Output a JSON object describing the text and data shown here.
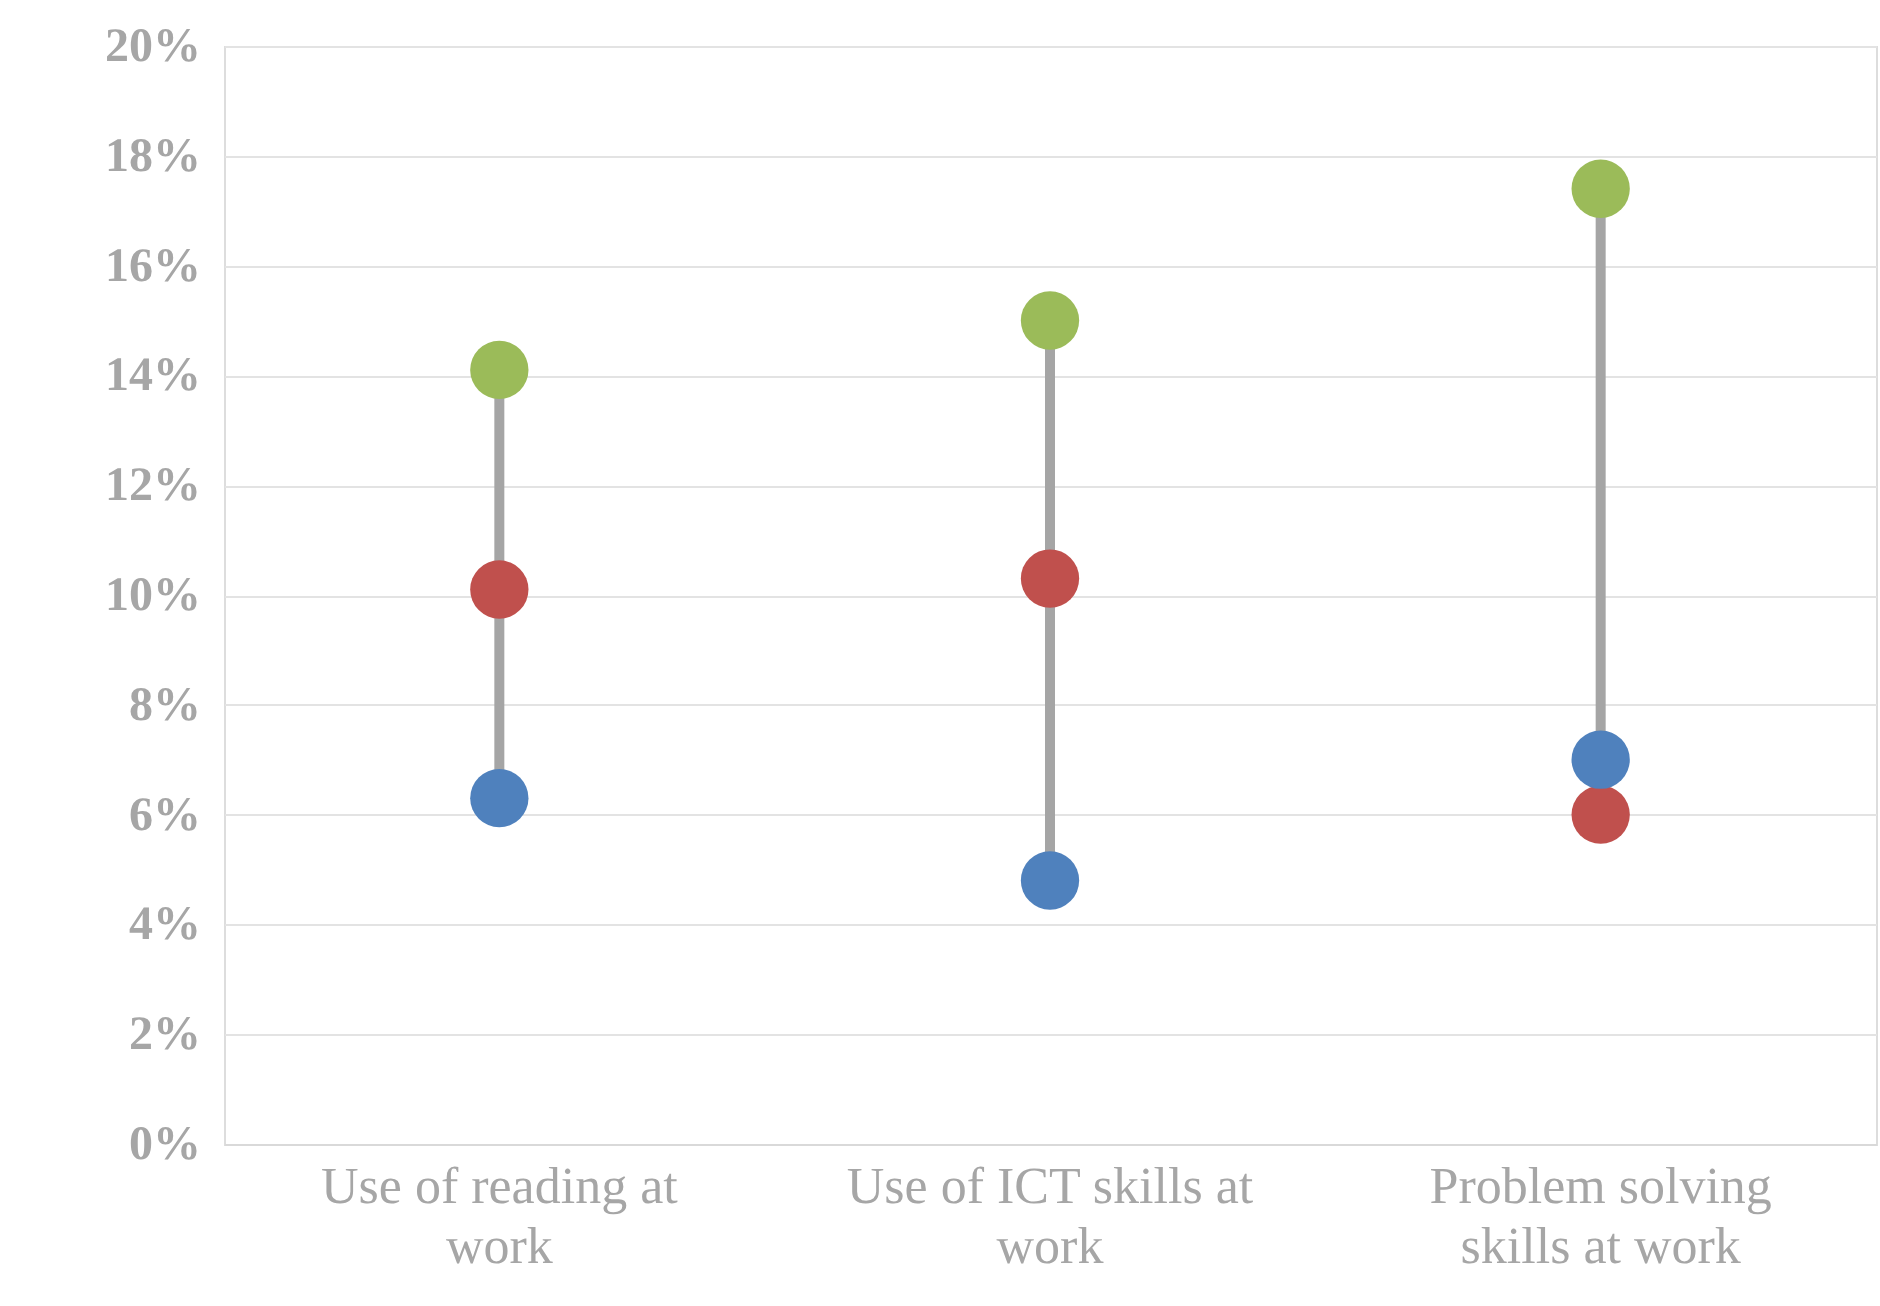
{
  "chart_data": {
    "type": "scatter",
    "marker": "circle",
    "grid": "y",
    "categories": [
      "Use of reading at work",
      "Use of ICT skills at work",
      "Problem solving skills at work"
    ],
    "ylim": [
      0,
      20
    ],
    "yticks": [
      {
        "value": 0,
        "label": "0%"
      },
      {
        "value": 2,
        "label": "2%"
      },
      {
        "value": 4,
        "label": "4%"
      },
      {
        "value": 6,
        "label": "6%"
      },
      {
        "value": 8,
        "label": "8%"
      },
      {
        "value": 10,
        "label": "10%"
      },
      {
        "value": 12,
        "label": "12%"
      },
      {
        "value": 14,
        "label": "14%"
      },
      {
        "value": 16,
        "label": "16%"
      },
      {
        "value": 18,
        "label": "18%"
      },
      {
        "value": 20,
        "label": "20%"
      }
    ],
    "series": [
      {
        "color": "#9bbb59",
        "values": [
          14.1,
          15.0,
          17.4
        ]
      },
      {
        "color": "#c0504d",
        "values": [
          10.1,
          10.3,
          6.0
        ]
      },
      {
        "color": "#4f81bd",
        "values": [
          6.3,
          4.8,
          7.0
        ]
      }
    ]
  }
}
